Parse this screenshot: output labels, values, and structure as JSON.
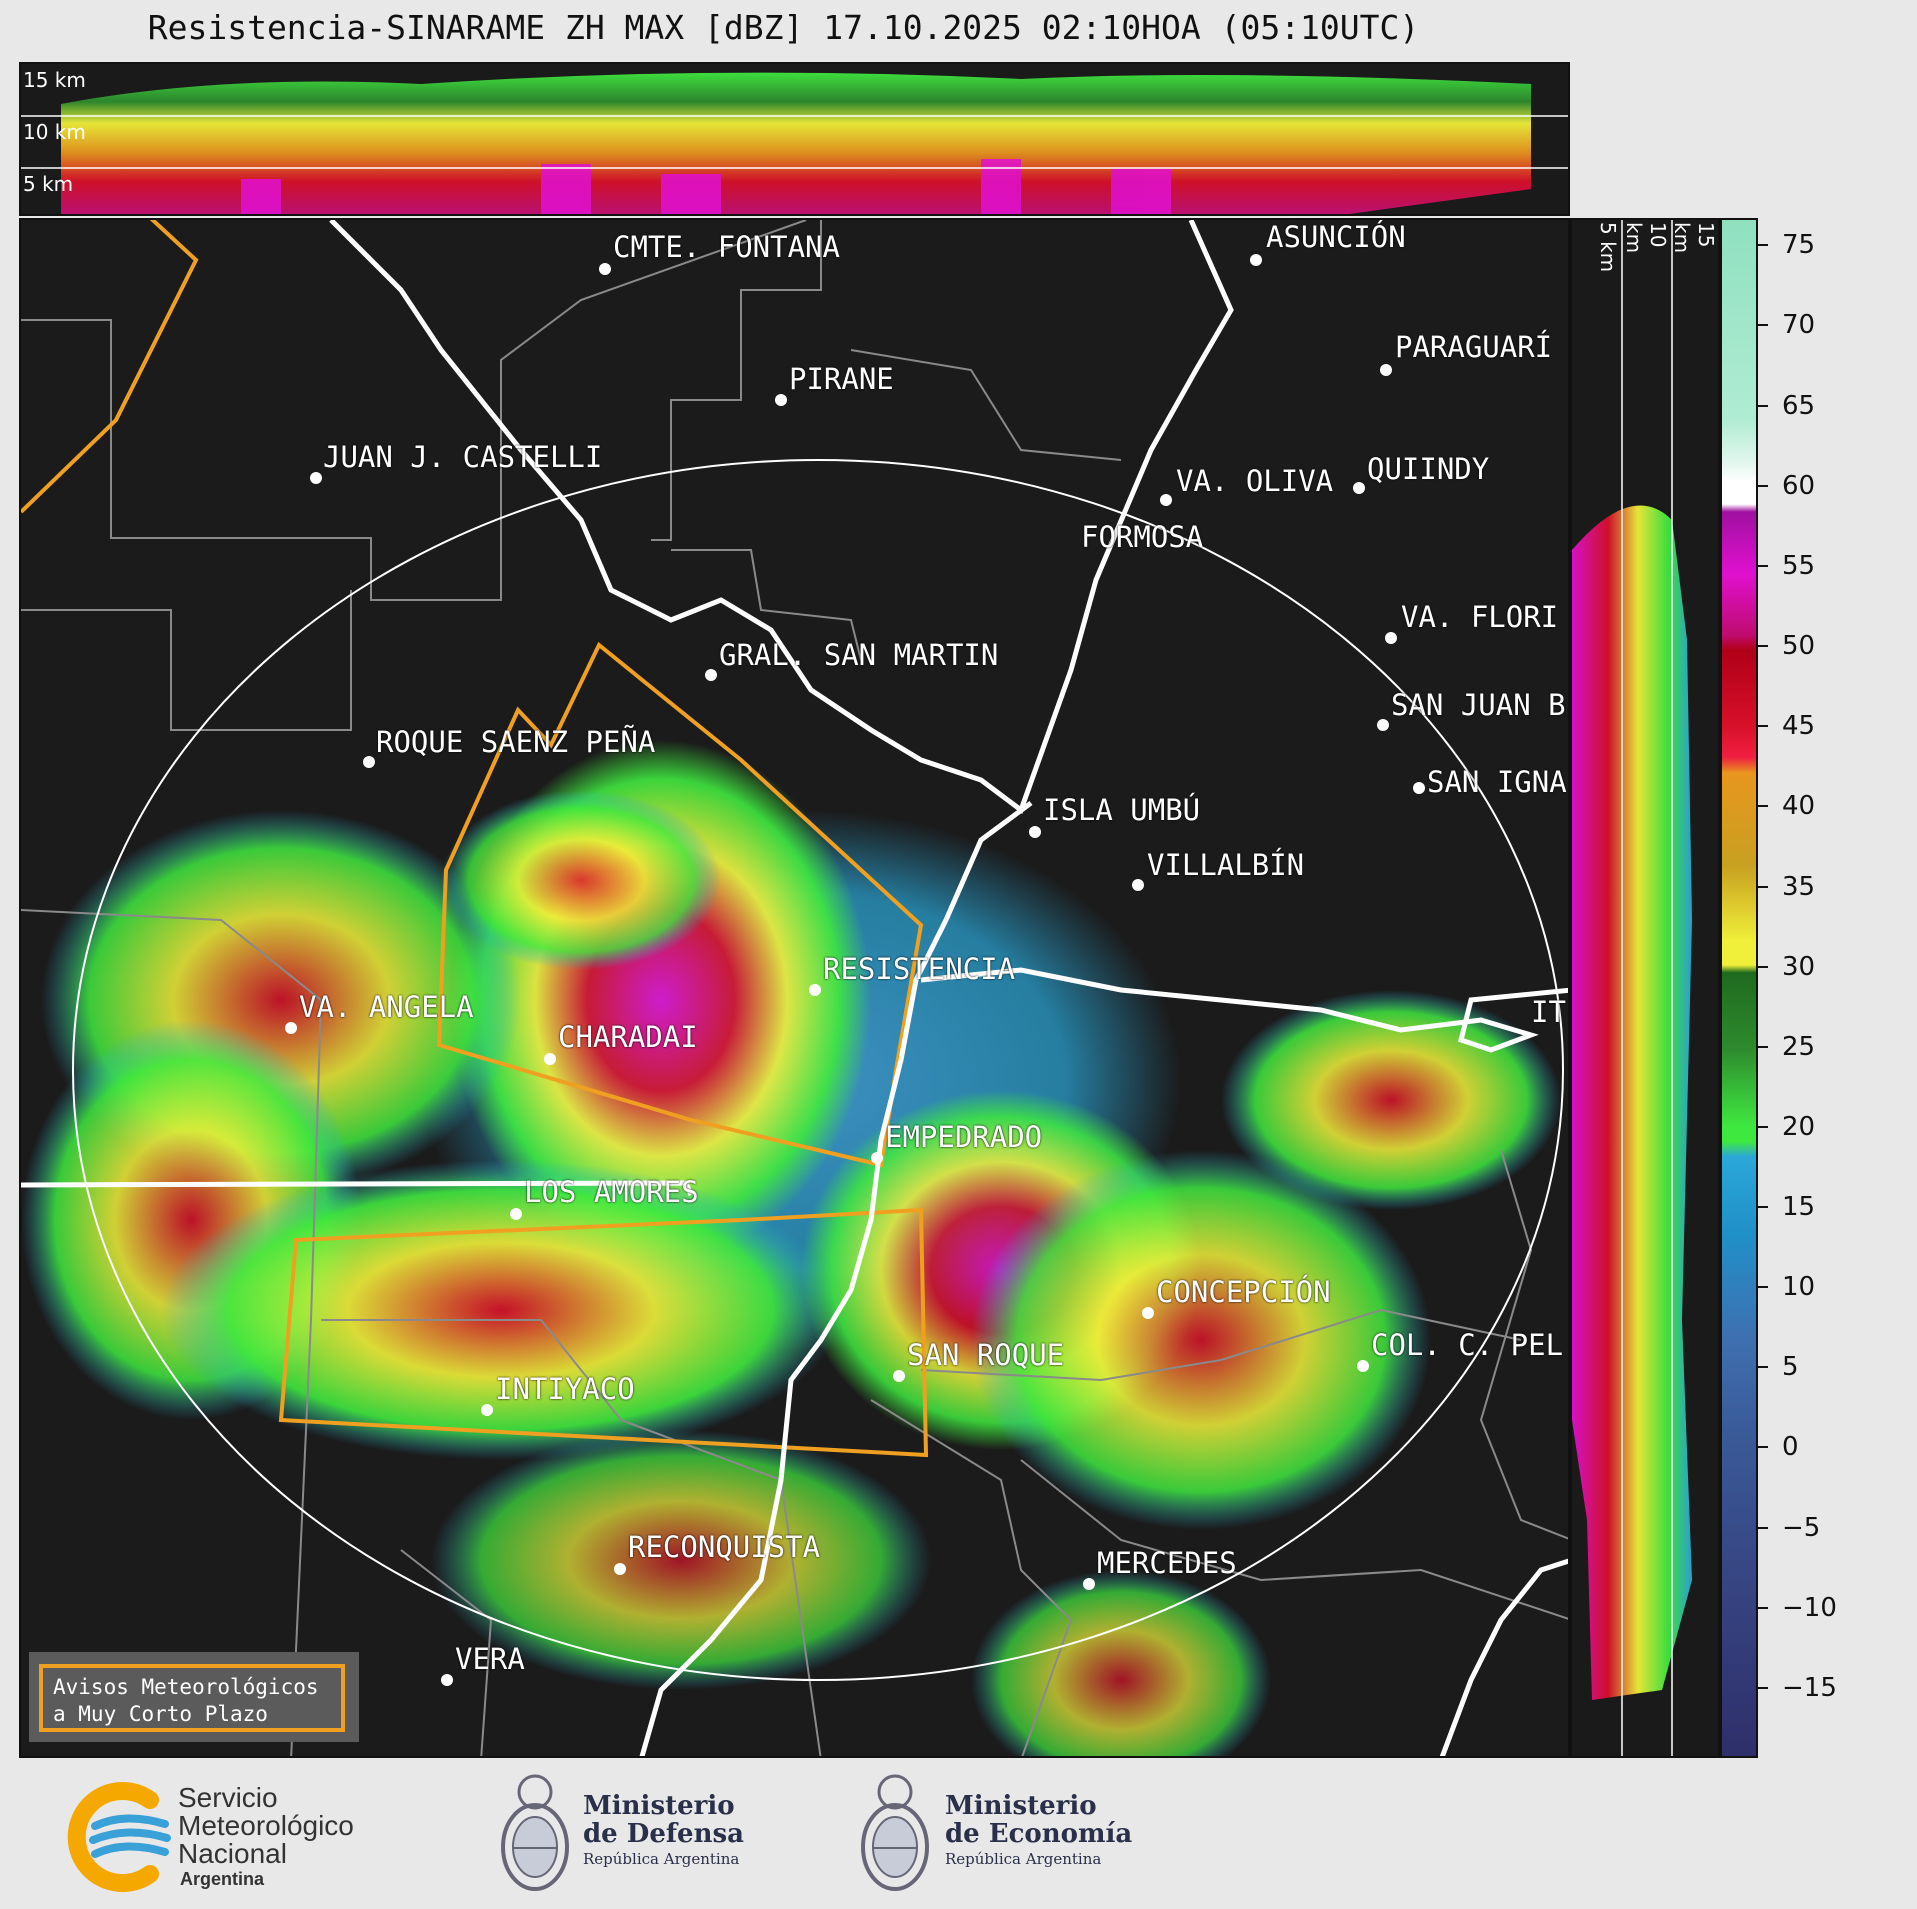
{
  "title": "Resistencia-SINARAME ZH MAX [dBZ] 17.10.2025 02:10HOA (05:10UTC)",
  "top_section": {
    "km_labels": [
      "15 km",
      "10 km",
      "5 km"
    ]
  },
  "right_section": {
    "km_labels": [
      "5 km",
      "10 km",
      "15 km"
    ]
  },
  "colorbar": {
    "labels": [
      "75",
      "70",
      "65",
      "60",
      "55",
      "50",
      "45",
      "40",
      "35",
      "30",
      "25",
      "20",
      "15",
      "10",
      "5",
      "0",
      "−5",
      "−10",
      "−15"
    ],
    "colors": {
      "very_low": "#2e2f6a",
      "low": "#3f6fb0",
      "blue": "#2aa7d8",
      "green": "#2e8b2e",
      "bright_green": "#3fe83f",
      "yellow": "#f0f03a",
      "orange": "#e8961e",
      "red": "#d8102a",
      "magenta": "#e010d0",
      "purple": "#a010a0",
      "white": "#ffffff",
      "mint": "#8fe0c0"
    }
  },
  "cities": [
    {
      "name": "CMTE. FONTANA"
    },
    {
      "name": "ASUNCIÓN"
    },
    {
      "name": "PARAGUARÍ"
    },
    {
      "name": "PIRANE"
    },
    {
      "name": "JUAN J. CASTELLI"
    },
    {
      "name": "VA. OLIVA"
    },
    {
      "name": "QUIINDY"
    },
    {
      "name": "FORMOSA"
    },
    {
      "name": "VA. FLORI"
    },
    {
      "name": "GRAL. SAN MARTIN"
    },
    {
      "name": "SAN JUAN B"
    },
    {
      "name": "ROQUE SAENZ PEÑA"
    },
    {
      "name": "SAN IGNA"
    },
    {
      "name": "ISLA UMBÚ"
    },
    {
      "name": "VILLALBÍN"
    },
    {
      "name": "RESISTENCIA"
    },
    {
      "name": "VA. ANGELA"
    },
    {
      "name": "IT"
    },
    {
      "name": "CHARADAI"
    },
    {
      "name": "EMPEDRADO"
    },
    {
      "name": "LOS AMORES"
    },
    {
      "name": "CONCEPCIÓN"
    },
    {
      "name": "COL. C. PEL"
    },
    {
      "name": "SAN ROQUE"
    },
    {
      "name": "INTIYACO"
    },
    {
      "name": "RECONQUISTA"
    },
    {
      "name": "MERCEDES"
    },
    {
      "name": "VERA"
    }
  ],
  "avisos": {
    "line1": "Avisos Meteorológicos",
    "line2": "a Muy Corto Plazo"
  },
  "footer": {
    "smn": {
      "line1": "Servicio",
      "line2": "Meteorológico",
      "line3": "Nacional",
      "line4": "Argentina"
    },
    "defensa": {
      "line1": "Ministerio",
      "line2": "de Defensa",
      "line3": "República Argentina"
    },
    "economia": {
      "line1": "Ministerio",
      "line2": "de Economía",
      "line3": "República Argentina"
    }
  }
}
